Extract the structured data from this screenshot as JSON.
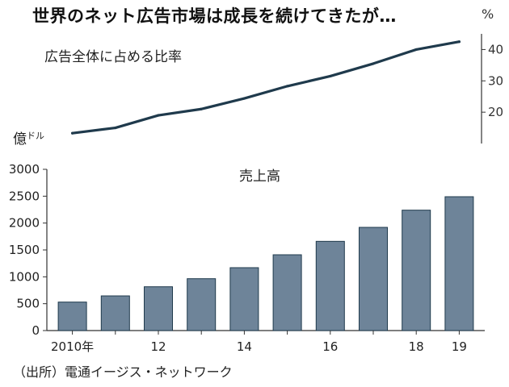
{
  "title": "世界のネット広告市場は成長を続けてきたが…",
  "source": "（出所）電通イージス・ネットワーク",
  "chart_data": [
    {
      "type": "line",
      "label": "広告全体に占める比率",
      "y_axis_unit": "%",
      "y_axis_side": "right",
      "ylim": [
        10,
        45
      ],
      "y_ticks": [
        20,
        30,
        40
      ],
      "x": [
        2010,
        2011,
        2012,
        2013,
        2014,
        2015,
        2016,
        2017,
        2018,
        2019
      ],
      "values": [
        13.3,
        15.0,
        19.0,
        21.0,
        24.4,
        28.3,
        31.5,
        35.5,
        40.0,
        42.5
      ],
      "color": "#1f3a4c"
    },
    {
      "type": "bar",
      "label": "売上高",
      "y_axis_unit_main": "億",
      "y_axis_unit_sup": "ドル",
      "ylim": [
        0,
        3000
      ],
      "y_ticks": [
        0,
        500,
        1000,
        1500,
        2000,
        2500,
        3000
      ],
      "x": [
        2010,
        2011,
        2012,
        2013,
        2014,
        2015,
        2016,
        2017,
        2018,
        2019
      ],
      "x_tick_labels": [
        "2010年",
        "",
        "12",
        "",
        "14",
        "",
        "16",
        "",
        "18",
        "19"
      ],
      "values": [
        530,
        645,
        815,
        965,
        1170,
        1410,
        1660,
        1920,
        2240,
        2490
      ],
      "bar_color": "#6e8499",
      "bar_edge": "#1f3a4c",
      "grid": false
    }
  ]
}
